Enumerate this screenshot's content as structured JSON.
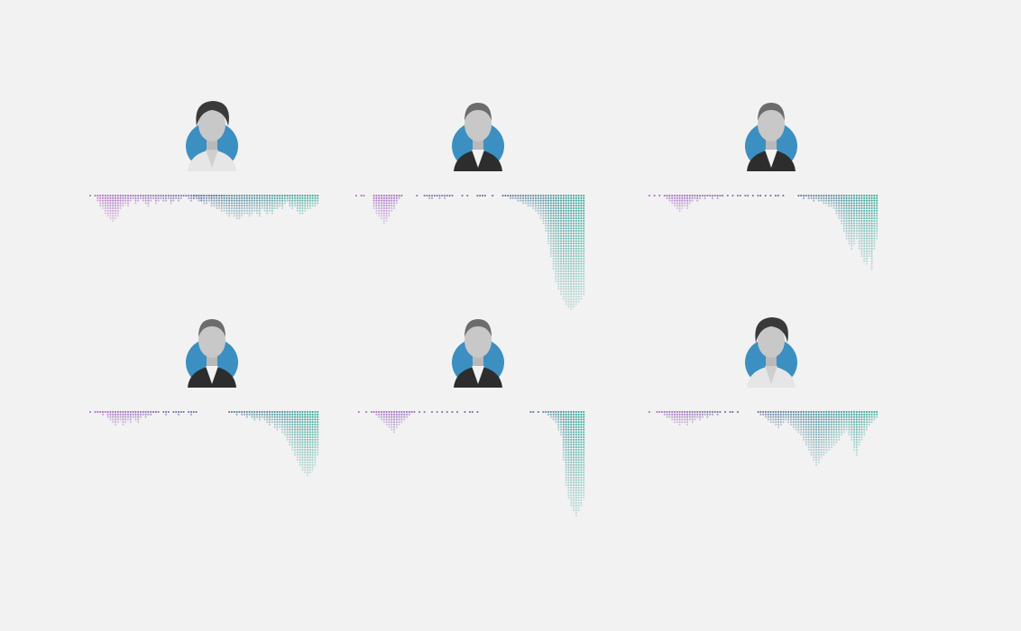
{
  "colors": {
    "background": "#f2f2f2",
    "purple": "#b565c9",
    "slate": "#5f6f9c",
    "teal": "#2aa895",
    "portrait_bg": "#3b8fc1"
  },
  "chart_data": [
    {
      "type": "dot-column",
      "portrait_icon": "female-portrait-icon",
      "series": [
        {
          "name": "left",
          "values": [
            1,
            0,
            1,
            3,
            5,
            6,
            8,
            9,
            10,
            11,
            10,
            9,
            6,
            5,
            4,
            5,
            3,
            2,
            4,
            3,
            2,
            3,
            4,
            5,
            3,
            2,
            4,
            3,
            2,
            3,
            3,
            2,
            4,
            3,
            2,
            3,
            2,
            1,
            1,
            2,
            3,
            2,
            1,
            2,
            3,
            1,
            0,
            1,
            2,
            1,
            1,
            0,
            1,
            1
          ]
        },
        {
          "name": "right",
          "values": [
            2,
            2,
            3,
            3,
            4,
            4,
            3,
            5,
            5,
            6,
            6,
            7,
            7,
            8,
            9,
            8,
            9,
            10,
            10,
            9,
            8,
            8,
            9,
            8,
            7,
            8,
            9,
            6,
            7,
            8,
            7,
            8,
            6,
            6,
            5,
            6,
            4,
            3,
            5,
            6,
            5,
            7,
            8,
            8,
            7,
            6,
            6,
            5,
            5,
            4
          ]
        }
      ]
    },
    {
      "type": "dot-column",
      "portrait_icon": "male-portrait-icon",
      "series": [
        {
          "name": "left",
          "values": [
            1,
            0,
            1,
            1,
            0,
            0,
            0,
            6,
            8,
            9,
            10,
            12,
            11,
            9,
            7,
            6,
            4,
            2,
            1,
            0,
            0,
            0,
            0,
            0,
            1,
            0,
            0,
            1,
            1,
            2,
            2,
            1,
            1,
            2,
            1,
            2,
            1,
            1,
            1,
            0,
            0,
            0,
            1,
            0,
            1,
            0,
            0,
            0,
            1,
            1,
            1,
            1,
            0,
            0,
            1
          ]
        },
        {
          "name": "right",
          "values": [
            1,
            1,
            1,
            2,
            2,
            2,
            3,
            3,
            4,
            4,
            5,
            5,
            6,
            7,
            8,
            10,
            12,
            15,
            20,
            25,
            30,
            35,
            38,
            40,
            42,
            44,
            45,
            46,
            45,
            44,
            43,
            42,
            40
          ]
        }
      ]
    },
    {
      "type": "dot-column",
      "portrait_icon": "male-portrait-icon",
      "series": [
        {
          "name": "left",
          "values": [
            1,
            0,
            1,
            0,
            1,
            0,
            1,
            2,
            3,
            4,
            5,
            6,
            7,
            6,
            5,
            6,
            4,
            3,
            2,
            3,
            2,
            1,
            2,
            1,
            1,
            2,
            1,
            2,
            1,
            1,
            0,
            1,
            0,
            1,
            0,
            1,
            1,
            0,
            1,
            1,
            0,
            1,
            0,
            1,
            1,
            0,
            1,
            0,
            1,
            0,
            1,
            1,
            0,
            1
          ]
        },
        {
          "name": "right",
          "values": [
            1,
            1,
            2,
            1,
            2,
            2,
            3,
            2,
            3,
            3,
            4,
            4,
            5,
            5,
            6,
            8,
            10,
            12,
            15,
            18,
            20,
            22,
            20,
            18,
            22,
            25,
            27,
            28,
            25,
            30,
            22,
            18
          ]
        }
      ]
    },
    {
      "type": "dot-column",
      "portrait_icon": "male-portrait-icon",
      "series": [
        {
          "name": "left",
          "values": [
            1,
            0,
            1,
            1,
            1,
            2,
            1,
            3,
            4,
            5,
            6,
            5,
            4,
            6,
            5,
            4,
            5,
            3,
            4,
            5,
            3,
            2,
            3,
            2,
            2,
            1,
            1,
            1,
            0,
            1,
            2,
            1,
            0,
            1,
            1,
            2,
            1,
            1,
            0,
            1,
            2,
            1,
            1
          ]
        },
        {
          "name": "right",
          "values": [
            1,
            1,
            1,
            2,
            1,
            2,
            2,
            3,
            2,
            3,
            4,
            3,
            4,
            3,
            4,
            5,
            6,
            5,
            7,
            8,
            7,
            9,
            10,
            12,
            14,
            16,
            18,
            20,
            22,
            24,
            25,
            26,
            25,
            24,
            22,
            18
          ]
        }
      ]
    },
    {
      "type": "dot-column",
      "portrait_icon": "male-portrait-icon",
      "series": [
        {
          "name": "left",
          "values": [
            0,
            1,
            0,
            0,
            1,
            0,
            1,
            1,
            2,
            3,
            4,
            5,
            6,
            7,
            8,
            9,
            7,
            6,
            5,
            4,
            3,
            2,
            1,
            1,
            0,
            1,
            0,
            1,
            0,
            0,
            1,
            0,
            1,
            0,
            1,
            0,
            1,
            0,
            1,
            0,
            1,
            0,
            0,
            1,
            0,
            1,
            1,
            0,
            1,
            0
          ]
        },
        {
          "name": "right",
          "values": [
            1,
            1,
            0,
            1,
            0,
            1,
            1,
            2,
            3,
            4,
            5,
            8,
            10,
            20,
            30,
            35,
            38,
            40,
            42,
            40,
            38,
            35
          ]
        }
      ]
    },
    {
      "type": "dot-column",
      "portrait_icon": "female-portrait-icon",
      "series": [
        {
          "name": "left",
          "values": [
            1,
            0,
            0,
            1,
            1,
            1,
            2,
            3,
            3,
            4,
            5,
            5,
            6,
            5,
            5,
            6,
            4,
            5,
            4,
            3,
            4,
            3,
            2,
            3,
            2,
            2,
            1,
            2,
            1,
            0,
            1,
            0,
            1,
            1,
            0,
            1
          ]
        },
        {
          "name": "right",
          "values": [
            1,
            2,
            2,
            3,
            4,
            5,
            5,
            6,
            7,
            6,
            5,
            4,
            5,
            6,
            7,
            8,
            9,
            10,
            12,
            14,
            16,
            18,
            20,
            22,
            21,
            19,
            18,
            17,
            16,
            15,
            14,
            13,
            12,
            10,
            9,
            8,
            10,
            12,
            16,
            18,
            14,
            12,
            10,
            8,
            6,
            5,
            4,
            3
          ]
        }
      ]
    }
  ]
}
